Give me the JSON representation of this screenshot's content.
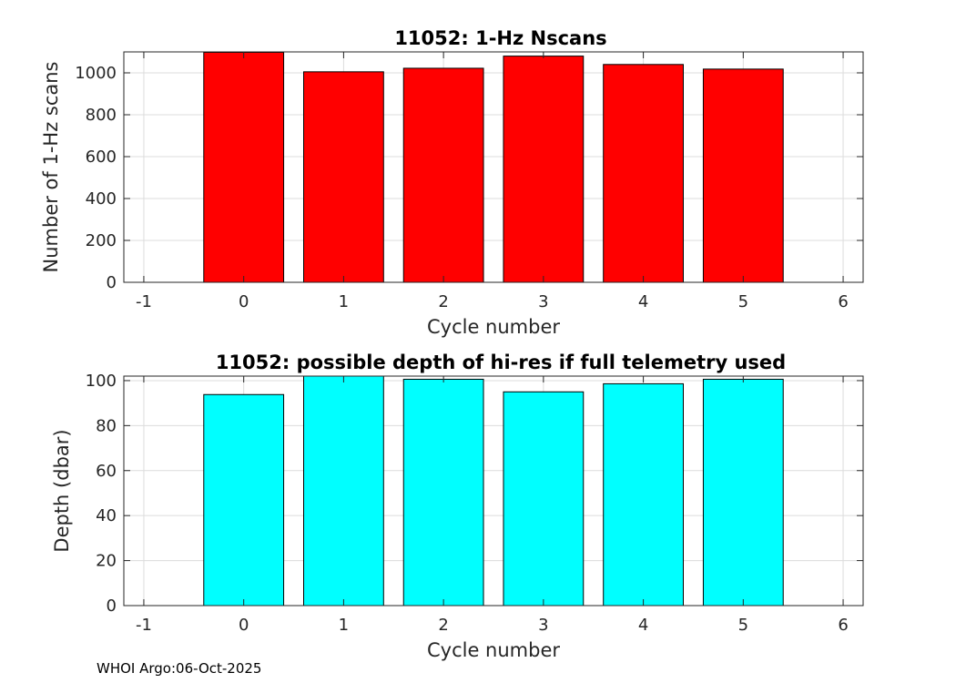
{
  "chart_data": [
    {
      "type": "bar",
      "title": "11052: 1-Hz Nscans",
      "xlabel": "Cycle number",
      "ylabel": "Number of 1-Hz scans",
      "categories": [
        0,
        1,
        2,
        3,
        4,
        5
      ],
      "values": [
        1098,
        1005,
        1022,
        1080,
        1040,
        1018
      ],
      "xlim": [
        -1.2,
        6.2
      ],
      "ylim": [
        0,
        1100
      ],
      "xticks": [
        -1,
        0,
        1,
        2,
        3,
        4,
        5,
        6
      ],
      "yticks": [
        0,
        200,
        400,
        600,
        800,
        1000
      ],
      "bar_color": "#ff0000",
      "grid": true
    },
    {
      "type": "bar",
      "title": "11052: possible depth of hi-res if full telemetry used",
      "xlabel": "Cycle number",
      "ylabel": "Depth (dbar)",
      "categories": [
        0,
        1,
        2,
        3,
        4,
        5
      ],
      "values": [
        93.8,
        102,
        100.6,
        95,
        98.6,
        100.6
      ],
      "xlim": [
        -1.2,
        6.2
      ],
      "ylim": [
        0,
        102
      ],
      "xticks": [
        -1,
        0,
        1,
        2,
        3,
        4,
        5,
        6
      ],
      "yticks": [
        0,
        20,
        40,
        60,
        80,
        100
      ],
      "bar_color": "#00ffff",
      "grid": true
    }
  ],
  "footer": "WHOI Argo:06-Oct-2025"
}
